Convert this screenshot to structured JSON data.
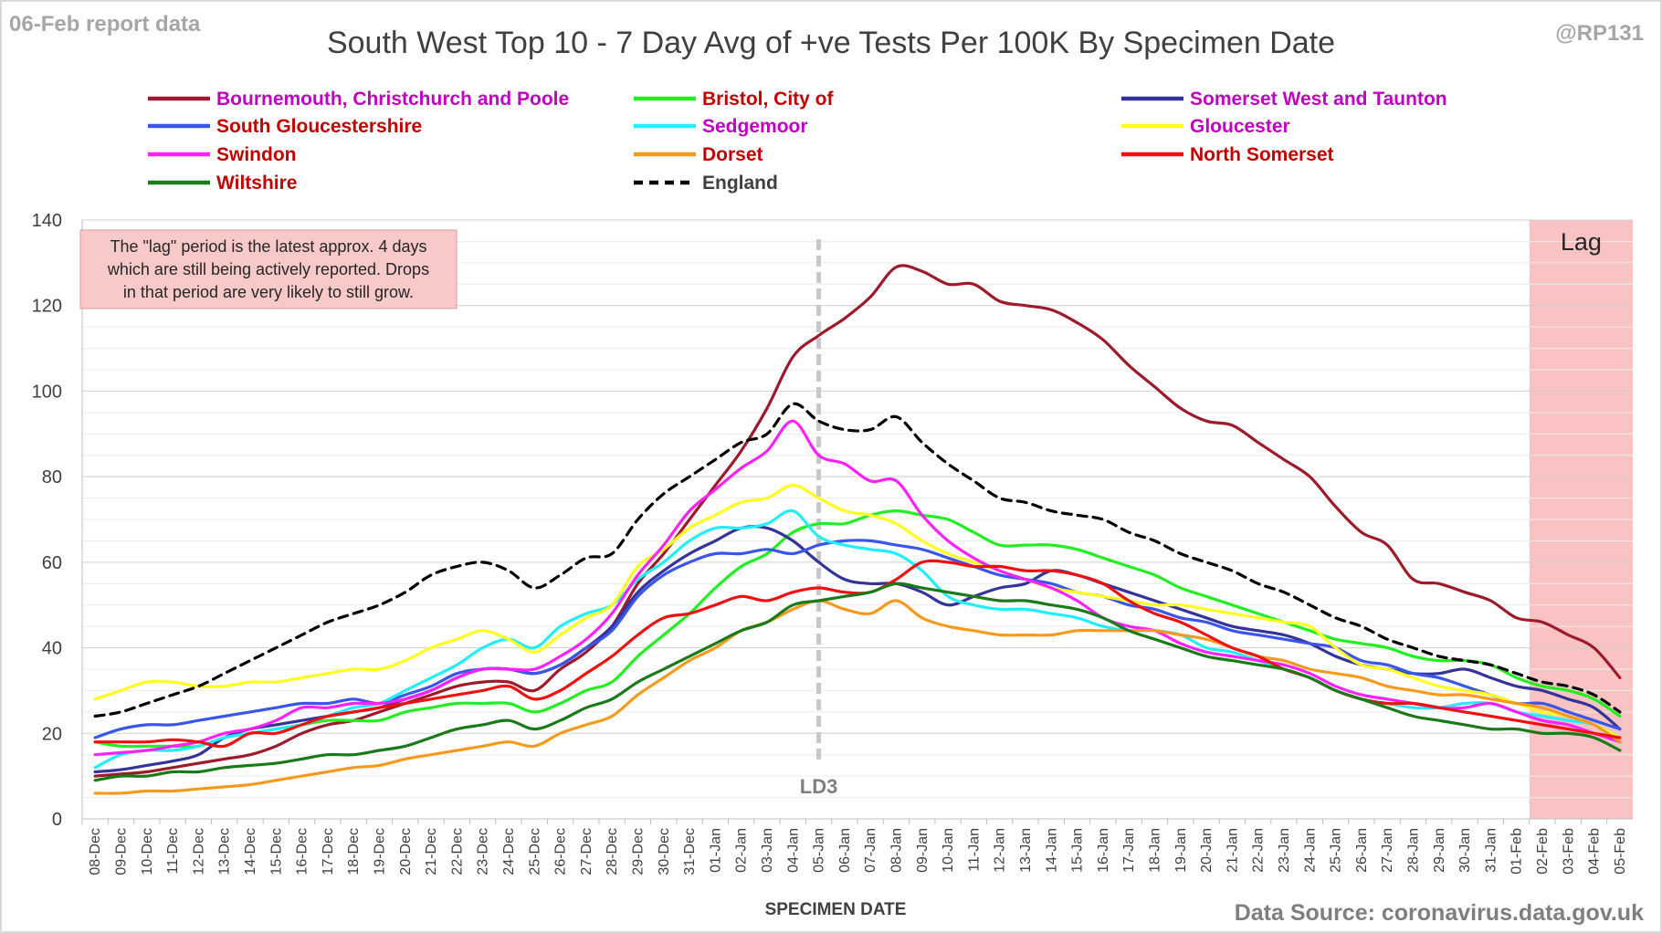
{
  "header": {
    "report_label": "06-Feb report data",
    "handle": "@RP131",
    "source": "Data Source: coronavirus.data.gov.uk"
  },
  "chart_data": {
    "type": "line",
    "title": "South West Top 10 - 7 Day Avg of +ve Tests Per 100K By Specimen Date",
    "xlabel": "SPECIMEN DATE",
    "ylabel": "",
    "ylim": [
      0,
      140
    ],
    "yticks": [
      0,
      20,
      40,
      60,
      80,
      100,
      120,
      140
    ],
    "grid": true,
    "legend": "top",
    "categories": [
      "08-Dec",
      "09-Dec",
      "10-Dec",
      "11-Dec",
      "12-Dec",
      "13-Dec",
      "14-Dec",
      "15-Dec",
      "16-Dec",
      "17-Dec",
      "18-Dec",
      "19-Dec",
      "20-Dec",
      "21-Dec",
      "22-Dec",
      "23-Dec",
      "24-Dec",
      "25-Dec",
      "26-Dec",
      "27-Dec",
      "28-Dec",
      "29-Dec",
      "30-Dec",
      "31-Dec",
      "01-Jan",
      "02-Jan",
      "03-Jan",
      "04-Jan",
      "05-Jan",
      "06-Jan",
      "07-Jan",
      "08-Jan",
      "09-Jan",
      "10-Jan",
      "11-Jan",
      "12-Jan",
      "13-Jan",
      "14-Jan",
      "15-Jan",
      "16-Jan",
      "17-Jan",
      "18-Jan",
      "19-Jan",
      "20-Jan",
      "21-Jan",
      "22-Jan",
      "23-Jan",
      "24-Jan",
      "25-Jan",
      "26-Jan",
      "27-Jan",
      "28-Jan",
      "29-Jan",
      "30-Jan",
      "31-Jan",
      "01-Feb",
      "02-Feb",
      "03-Feb",
      "04-Feb",
      "05-Feb"
    ],
    "annotations": {
      "lag_label": "Lag",
      "lag_start": "02-Feb",
      "lag_note": [
        "The \"lag\" period is the latest approx. 4 days",
        "which are still being actively reported.  Drops",
        "in that period are very likely to still grow."
      ],
      "ld_label": "LD3",
      "ld_date": "05-Jan"
    },
    "series": [
      {
        "name": "Bournemouth, Christchurch and Poole",
        "color": "#9b1a2b",
        "label_color": "#c000c0",
        "dashed": false,
        "values": [
          10,
          10.5,
          11,
          12,
          13,
          14,
          15,
          17,
          20,
          22,
          23,
          25,
          27,
          29,
          31,
          32,
          32,
          30,
          35,
          39,
          45,
          55,
          62,
          70,
          78,
          86,
          96,
          108,
          113,
          117,
          122,
          129,
          128,
          125,
          125,
          121,
          120,
          119,
          116,
          112,
          106,
          101,
          96,
          93,
          92,
          88,
          84,
          80,
          73,
          67,
          64,
          56,
          55,
          53,
          51,
          47,
          46,
          43,
          40,
          33
        ]
      },
      {
        "name": "Bristol, City of",
        "color": "#22ee22",
        "label_color": "#c00000",
        "dashed": false,
        "values": [
          18,
          17,
          17,
          17,
          17,
          19,
          20,
          21,
          22,
          23,
          23,
          23,
          25,
          26,
          27,
          27,
          27,
          25,
          27,
          30,
          32,
          38,
          43,
          48,
          54,
          59,
          62,
          67,
          69,
          69,
          71,
          72,
          71,
          70,
          67,
          64,
          64,
          64,
          63,
          61,
          59,
          57,
          54,
          52,
          50,
          48,
          46,
          44,
          42,
          41,
          40,
          38,
          37,
          37,
          36,
          33,
          31,
          30,
          28,
          24
        ]
      },
      {
        "name": "Somerset West and Taunton",
        "color": "#333399",
        "label_color": "#c000c0",
        "dashed": false,
        "values": [
          11,
          11.5,
          12.5,
          13.5,
          15,
          19,
          21,
          22,
          23,
          24,
          25,
          26,
          28,
          30,
          33,
          35,
          35,
          34,
          36,
          40,
          45,
          53,
          58,
          62,
          65,
          68,
          68,
          65,
          60,
          56,
          55,
          55,
          53,
          50,
          52,
          54,
          55,
          58,
          57,
          55,
          53,
          51,
          49,
          47,
          45,
          44,
          43,
          41,
          38,
          36,
          35,
          34,
          34,
          35,
          33,
          31,
          30,
          28,
          26,
          21
        ]
      },
      {
        "name": "South Gloucestershire",
        "color": "#3a56e8",
        "label_color": "#c00000",
        "dashed": false,
        "values": [
          19,
          21,
          22,
          22,
          23,
          24,
          25,
          26,
          27,
          27,
          28,
          27,
          29,
          31,
          34,
          35,
          35,
          34,
          36,
          40,
          44,
          52,
          57,
          60,
          62,
          62,
          63,
          62,
          64,
          65,
          65,
          64,
          63,
          61,
          59,
          57,
          56,
          55,
          53,
          52,
          50,
          49,
          47,
          46,
          44,
          43,
          42,
          41,
          40,
          37,
          36,
          34,
          33,
          31,
          29,
          27,
          27,
          25,
          23,
          21
        ]
      },
      {
        "name": "Sedgemoor",
        "color": "#22eeff",
        "label_color": "#c000c0",
        "dashed": false,
        "values": [
          12,
          15,
          16,
          16,
          17,
          19,
          20,
          21,
          22,
          24,
          26,
          27,
          30,
          33,
          36,
          40,
          42,
          40,
          45,
          48,
          50,
          56,
          60,
          65,
          68,
          68,
          69,
          72,
          66,
          64,
          63,
          62,
          58,
          52,
          50,
          49,
          49,
          48,
          47,
          45,
          44,
          44,
          43,
          40,
          39,
          37,
          35,
          33,
          30,
          28,
          27,
          26,
          26,
          27,
          27,
          25,
          24,
          23,
          22,
          19
        ]
      },
      {
        "name": "Gloucester",
        "color": "#ffff22",
        "label_color": "#c000c0",
        "dashed": false,
        "values": [
          28,
          30,
          32,
          32,
          31,
          31,
          32,
          32,
          33,
          34,
          35,
          35,
          37,
          40,
          42,
          44,
          42,
          39,
          43,
          47,
          50,
          59,
          63,
          68,
          71,
          74,
          75,
          78,
          75,
          72,
          71,
          69,
          65,
          62,
          60,
          58,
          56,
          54,
          53,
          52,
          51,
          50,
          50,
          49,
          48,
          47,
          46,
          45,
          40,
          36,
          35,
          33,
          31,
          30,
          29,
          27,
          25,
          24,
          22,
          19
        ]
      },
      {
        "name": "Swindon",
        "color": "#ff22ff",
        "label_color": "#c00000",
        "dashed": false,
        "values": [
          15,
          15.5,
          16,
          17,
          18,
          20,
          21,
          23,
          26,
          26,
          27,
          27,
          28,
          30,
          33,
          35,
          35,
          35,
          38,
          42,
          48,
          57,
          64,
          72,
          77,
          82,
          86,
          93,
          85,
          83,
          79,
          79,
          71,
          65,
          61,
          58,
          56,
          54,
          51,
          47,
          45,
          44,
          41,
          39,
          38,
          37,
          36,
          34,
          31,
          29,
          28,
          27,
          26,
          26,
          27,
          25,
          23,
          22,
          20,
          18
        ]
      },
      {
        "name": "Dorset",
        "color": "#f59a1e",
        "label_color": "#c00000",
        "dashed": false,
        "values": [
          6,
          6,
          6.5,
          6.5,
          7,
          7.5,
          8,
          9,
          10,
          11,
          12,
          12.5,
          14,
          15,
          16,
          17,
          18,
          17,
          20,
          22,
          24,
          29,
          33,
          37,
          40,
          44,
          46,
          49,
          51,
          49,
          48,
          51,
          47,
          45,
          44,
          43,
          43,
          43,
          44,
          44,
          44,
          44,
          43,
          42,
          40,
          38,
          37,
          35,
          34,
          33,
          31,
          30,
          29,
          29,
          28,
          27,
          26,
          24,
          22,
          18
        ]
      },
      {
        "name": "North Somerset",
        "color": "#ee1111",
        "label_color": "#c00000",
        "dashed": false,
        "values": [
          18,
          18,
          18,
          18.5,
          18,
          17,
          20,
          20,
          22,
          24,
          25,
          26,
          27,
          28,
          29,
          30,
          31,
          28,
          30,
          34,
          38,
          43,
          47,
          48,
          50,
          52,
          51,
          53,
          54,
          53,
          53,
          56,
          60,
          60,
          59,
          59,
          58,
          58,
          57,
          55,
          51,
          48,
          46,
          43,
          40,
          38,
          35,
          33,
          30,
          28,
          27,
          27,
          26,
          25,
          24,
          23,
          22,
          21,
          20,
          19
        ]
      },
      {
        "name": "Wiltshire",
        "color": "#1a7a1a",
        "label_color": "#c00000",
        "dashed": false,
        "values": [
          9,
          10,
          10,
          11,
          11,
          12,
          12.5,
          13,
          14,
          15,
          15,
          16,
          17,
          19,
          21,
          22,
          23,
          21,
          23,
          26,
          28,
          32,
          35,
          38,
          41,
          44,
          46,
          50,
          51,
          52,
          53,
          55,
          54,
          53,
          52,
          51,
          51,
          50,
          49,
          47,
          44,
          42,
          40,
          38,
          37,
          36,
          35,
          33,
          30,
          28,
          26,
          24,
          23,
          22,
          21,
          21,
          20,
          20,
          19,
          16
        ]
      },
      {
        "name": "England",
        "color": "#000000",
        "label_color": "#404040",
        "dashed": true,
        "values": [
          24,
          25,
          27,
          29,
          31,
          34,
          37,
          40,
          43,
          46,
          48,
          50,
          53,
          57,
          59,
          60,
          58,
          54,
          57,
          61,
          62,
          70,
          76,
          80,
          84,
          88,
          90,
          97,
          93,
          91,
          91,
          94,
          88,
          83,
          79,
          75,
          74,
          72,
          71,
          70,
          67,
          65,
          62,
          60,
          58,
          55,
          53,
          50,
          47,
          45,
          42,
          40,
          38,
          37,
          36,
          34,
          32,
          31,
          29,
          25
        ]
      }
    ]
  }
}
